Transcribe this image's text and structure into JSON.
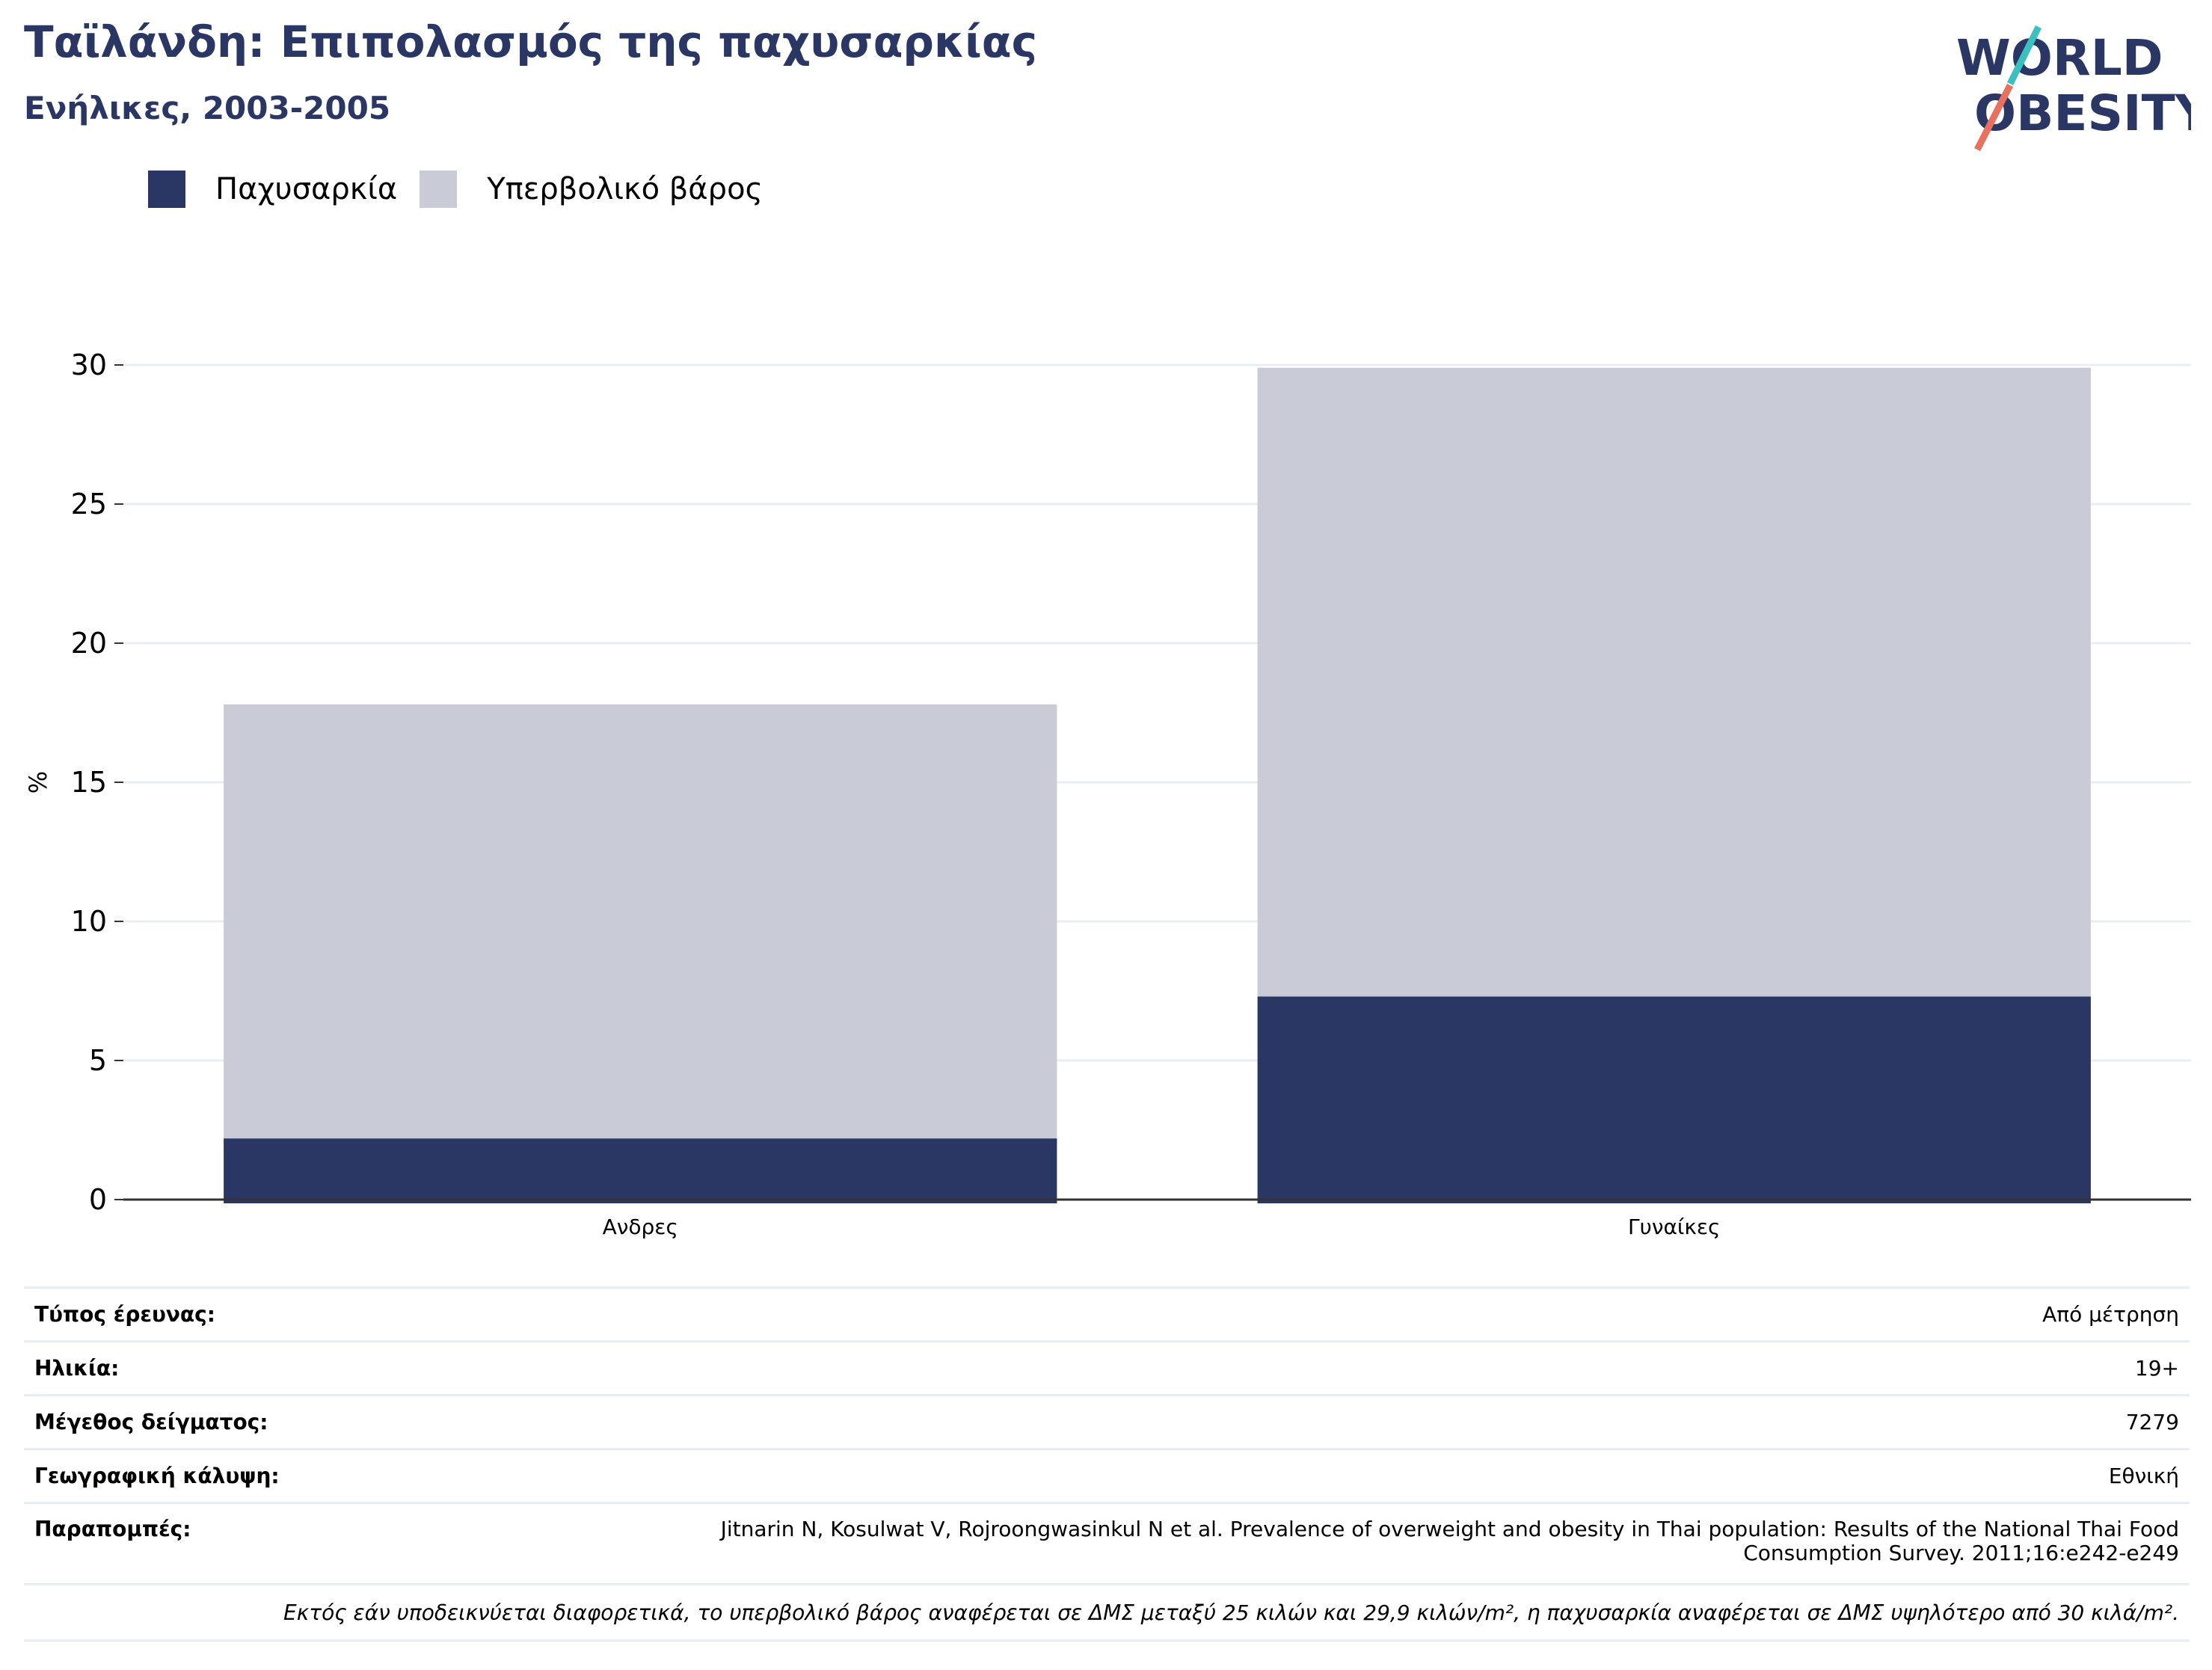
{
  "header": {
    "title": "Ταϊλάνδη: Επιπολασμός της παχυσαρκίας",
    "subtitle": "Ενήλικες, 2003-2005"
  },
  "logo": {
    "line1": "WORLD",
    "line2": "OBESITY"
  },
  "legend": [
    {
      "label": "Παχυσαρκία",
      "color": "#2a3663"
    },
    {
      "label": "Υπερβολικό βάρος",
      "color": "#c9cbd7"
    }
  ],
  "chart_data": {
    "type": "bar",
    "stacked": true,
    "categories": [
      "Ανδρες",
      "Γυναίκες"
    ],
    "series": [
      {
        "name": "Παχυσαρκία",
        "values": [
          2.2,
          7.3
        ],
        "color": "#2a3663"
      },
      {
        "name": "Υπερβολικό βάρος",
        "values": [
          15.6,
          22.6
        ],
        "color": "#c9cbd7"
      }
    ],
    "ylabel": "%",
    "ylim": [
      0,
      30
    ],
    "yticks": [
      0,
      5,
      10,
      15,
      20,
      25,
      30
    ],
    "grid": true,
    "legend_position": "top-left"
  },
  "info": {
    "rows": [
      {
        "key": "Τύπος έρευνας:",
        "value": "Από μέτρηση"
      },
      {
        "key": "Ηλικία:",
        "value": "19+"
      },
      {
        "key": "Μέγεθος δείγματος:",
        "value": "7279"
      },
      {
        "key": "Γεωγραφική κάλυψη:",
        "value": "Εθνική"
      }
    ],
    "references_key": "Παραπομπές:",
    "references_line1": "Jitnarin N, Kosulwat V, Rojroongwasinkul N et al. Prevalence of overweight and obesity in Thai population: Results of the National Thai Food",
    "references_line2": "Consumption Survey. 2011;16:e242-e249",
    "note": "Εκτός εάν υποδεικνύεται διαφορετικά, το υπερβολικό βάρος αναφέρεται σε ΔΜΣ μεταξύ 25 κιλών και 29,9 κιλών/m², η παχυσαρκία αναφέρεται σε ΔΜΣ υψηλότερο από 30 κιλά/m²."
  }
}
